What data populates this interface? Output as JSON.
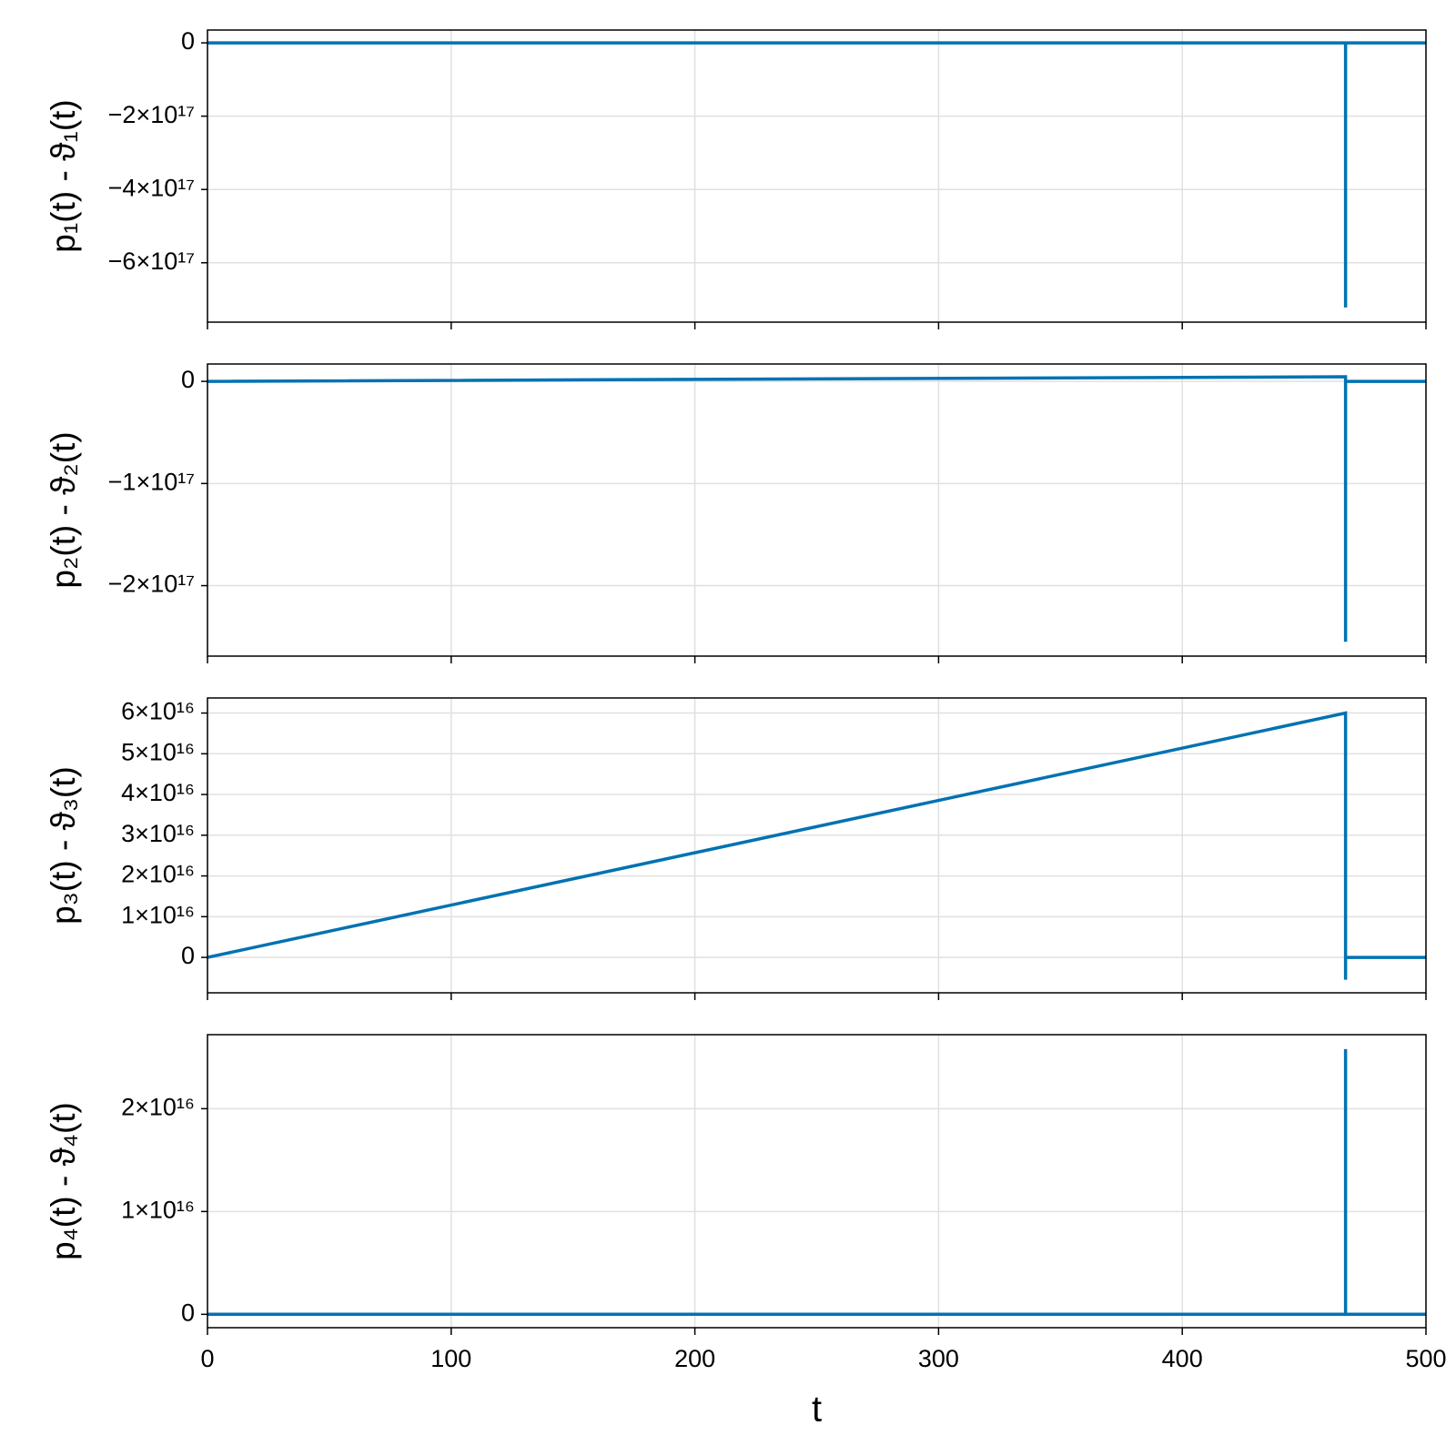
{
  "chart_data": [
    {
      "type": "line",
      "ylabel": "p₁(t) - ϑ₁(t)",
      "x": [
        0,
        467,
        467,
        467,
        500
      ],
      "series": [
        {
          "color": "#0072b2",
          "values": [
            0,
            0,
            -7.22e+17,
            0,
            0
          ]
        }
      ],
      "xlim": [
        0,
        500
      ],
      "xticks": [
        0,
        100,
        200,
        300,
        400,
        500
      ],
      "ylim": [
        -7.62e+17,
        3.5e+16
      ],
      "yticks": [
        {
          "value": -6e+17,
          "label": "−6×10¹⁷"
        },
        {
          "value": -4e+17,
          "label": "−4×10¹⁷"
        },
        {
          "value": -2e+17,
          "label": "−2×10¹⁷"
        },
        0
      ],
      "grid": true
    },
    {
      "type": "line",
      "ylabel": "p₂(t) - ϑ₂(t)",
      "x": [
        0,
        467,
        467,
        467,
        500
      ],
      "series": [
        {
          "color": "#0072b2",
          "values": [
            0,
            4500000000000000.0,
            -2.55e+17,
            0,
            0
          ]
        }
      ],
      "xlim": [
        0,
        500
      ],
      "xticks": [
        0,
        100,
        200,
        300,
        400,
        500
      ],
      "ylim": [
        -2.69e+17,
        1.7e+16
      ],
      "yticks": [
        {
          "value": -2e+17,
          "label": "−2×10¹⁷"
        },
        {
          "value": -1e+17,
          "label": "−1×10¹⁷"
        },
        0
      ],
      "grid": true
    },
    {
      "type": "line",
      "ylabel": "p₃(t) - ϑ₃(t)",
      "x": [
        0,
        467,
        467,
        467,
        500
      ],
      "series": [
        {
          "color": "#0072b2",
          "values": [
            0,
            6e+16,
            -5500000000000000.0,
            0,
            0
          ]
        }
      ],
      "xlim": [
        0,
        500
      ],
      "xticks": [
        0,
        100,
        200,
        300,
        400,
        500
      ],
      "ylim": [
        -8700000000000000.0,
        6.37e+16
      ],
      "yticks": [
        0,
        {
          "value": 1e+16,
          "label": "1×10¹⁶"
        },
        {
          "value": 2e+16,
          "label": "2×10¹⁶"
        },
        {
          "value": 3e+16,
          "label": "3×10¹⁶"
        },
        {
          "value": 4e+16,
          "label": "4×10¹⁶"
        },
        {
          "value": 5e+16,
          "label": "5×10¹⁶"
        },
        {
          "value": 6e+16,
          "label": "6×10¹⁶"
        }
      ],
      "grid": true
    },
    {
      "type": "line",
      "ylabel": "p₄(t) - ϑ₄(t)",
      "xlabel": "t",
      "x": [
        0,
        467,
        467,
        467,
        500
      ],
      "series": [
        {
          "color": "#0072b2",
          "values": [
            0,
            0,
            2.58e+16,
            0,
            0
          ]
        }
      ],
      "xlim": [
        0,
        500
      ],
      "xticks": [
        0,
        100,
        200,
        300,
        400,
        500
      ],
      "ylim": [
        -1300000000000000.0,
        2.72e+16
      ],
      "yticks": [
        0,
        {
          "value": 1e+16,
          "label": "1×10¹⁶"
        },
        {
          "value": 2e+16,
          "label": "2×10¹⁶"
        }
      ],
      "grid": true
    }
  ]
}
